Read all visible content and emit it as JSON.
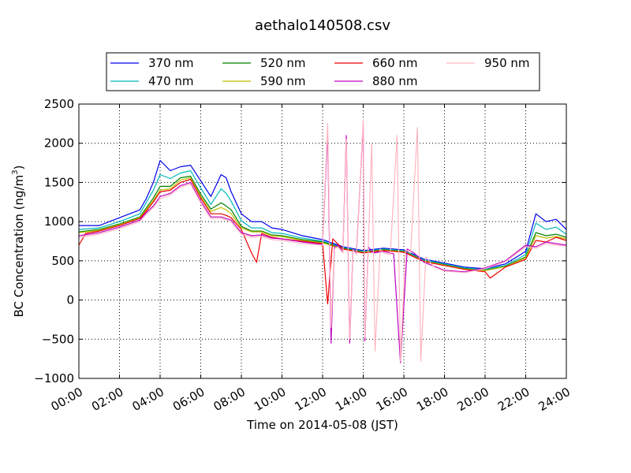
{
  "chart_data": {
    "type": "line",
    "title": "aethalo140508.csv",
    "xlabel": "Time on 2014-05-08 (JST)",
    "ylabel_main": "BC Concentration (ng/m",
    "ylabel_sup": "3",
    "ylabel_close": ")",
    "xlim": [
      "00:00",
      "24:00"
    ],
    "ylim": [
      -1000,
      2500
    ],
    "x_ticks": [
      "00:00",
      "02:00",
      "04:00",
      "06:00",
      "08:00",
      "10:00",
      "12:00",
      "14:00",
      "16:00",
      "18:00",
      "20:00",
      "22:00",
      "24:00"
    ],
    "y_ticks": [
      "−1000",
      "−500",
      "0",
      "500",
      "1000",
      "1500",
      "2000",
      "2500"
    ],
    "grid": true,
    "legend_position": "top, above plot",
    "series": [
      {
        "name": "370 nm",
        "color": "#0000ee",
        "x": [
          "00:00",
          "01:00",
          "02:00",
          "03:00",
          "03:20",
          "03:40",
          "04:00",
          "04:30",
          "05:00",
          "05:30",
          "06:00",
          "06:30",
          "07:00",
          "07:15",
          "07:30",
          "08:00",
          "08:30",
          "09:00",
          "09:30",
          "10:00",
          "11:00",
          "12:00",
          "13:00",
          "14:00",
          "15:00",
          "16:00",
          "17:00",
          "18:00",
          "19:00",
          "20:00",
          "21:00",
          "22:00",
          "22:30",
          "23:00",
          "23:30",
          "24:00"
        ],
        "y": [
          950,
          950,
          1050,
          1150,
          1300,
          1500,
          1780,
          1650,
          1700,
          1720,
          1520,
          1320,
          1600,
          1560,
          1380,
          1100,
          1000,
          1000,
          920,
          900,
          820,
          770,
          680,
          630,
          660,
          640,
          520,
          470,
          420,
          400,
          460,
          620,
          1100,
          1000,
          1030,
          900
        ]
      },
      {
        "name": "470 nm",
        "color": "#00b8b8",
        "x": [
          "00:00",
          "01:00",
          "02:00",
          "03:00",
          "03:20",
          "03:40",
          "04:00",
          "04:30",
          "05:00",
          "05:30",
          "06:00",
          "06:30",
          "07:00",
          "07:15",
          "07:30",
          "08:00",
          "08:30",
          "09:00",
          "09:30",
          "10:00",
          "11:00",
          "12:00",
          "13:00",
          "14:00",
          "15:00",
          "16:00",
          "17:00",
          "18:00",
          "19:00",
          "20:00",
          "21:00",
          "22:00",
          "22:30",
          "23:00",
          "23:30",
          "24:00"
        ],
        "y": [
          900,
          920,
          1000,
          1100,
          1250,
          1400,
          1600,
          1550,
          1620,
          1650,
          1430,
          1220,
          1420,
          1360,
          1260,
          1010,
          920,
          920,
          860,
          850,
          790,
          750,
          670,
          620,
          650,
          630,
          510,
          460,
          410,
          390,
          440,
          580,
          980,
          900,
          930,
          840
        ]
      },
      {
        "name": "520 nm",
        "color": "#007f00",
        "x": [
          "00:00",
          "01:00",
          "02:00",
          "03:00",
          "03:20",
          "03:40",
          "04:00",
          "04:30",
          "05:00",
          "05:30",
          "06:00",
          "06:30",
          "07:00",
          "07:15",
          "07:30",
          "08:00",
          "08:30",
          "09:00",
          "09:30",
          "10:00",
          "11:00",
          "12:00",
          "13:00",
          "14:00",
          "15:00",
          "16:00",
          "17:00",
          "18:00",
          "19:00",
          "20:00",
          "21:00",
          "22:00",
          "22:30",
          "23:00",
          "23:30",
          "24:00"
        ],
        "y": [
          870,
          900,
          970,
          1060,
          1180,
          1300,
          1450,
          1450,
          1560,
          1580,
          1350,
          1160,
          1240,
          1200,
          1150,
          940,
          880,
          880,
          830,
          820,
          770,
          740,
          660,
          610,
          640,
          620,
          500,
          450,
          400,
          380,
          430,
          550,
          860,
          820,
          840,
          800
        ]
      },
      {
        "name": "590 nm",
        "color": "#bfbf00",
        "x": [
          "00:00",
          "01:00",
          "02:00",
          "03:00",
          "03:20",
          "03:40",
          "04:00",
          "04:30",
          "05:00",
          "05:30",
          "06:00",
          "06:30",
          "07:00",
          "07:15",
          "07:30",
          "08:00",
          "08:30",
          "09:00",
          "09:30",
          "10:00",
          "11:00",
          "12:00",
          "13:00",
          "14:00",
          "15:00",
          "16:00",
          "17:00",
          "18:00",
          "19:00",
          "20:00",
          "21:00",
          "22:00",
          "22:30",
          "23:00",
          "23:30",
          "24:00"
        ],
        "y": [
          860,
          890,
          960,
          1050,
          1160,
          1270,
          1400,
          1420,
          1530,
          1560,
          1320,
          1130,
          1180,
          1150,
          1100,
          920,
          870,
          870,
          820,
          810,
          760,
          730,
          650,
          605,
          635,
          615,
          495,
          445,
          395,
          375,
          425,
          540,
          820,
          790,
          810,
          780
        ]
      },
      {
        "name": "660 nm",
        "color": "#ee0000",
        "x": [
          "00:00",
          "00:20",
          "01:00",
          "02:00",
          "03:00",
          "03:20",
          "03:40",
          "04:00",
          "04:30",
          "05:00",
          "05:30",
          "06:00",
          "06:30",
          "07:00",
          "07:15",
          "07:30",
          "08:00",
          "08:30",
          "08:45",
          "09:00",
          "09:30",
          "10:00",
          "11:00",
          "12:00",
          "12:15",
          "12:30",
          "13:00",
          "14:00",
          "15:00",
          "16:00",
          "17:00",
          "18:00",
          "19:00",
          "20:00",
          "20:15",
          "21:00",
          "22:00",
          "22:30",
          "23:00",
          "23:30",
          "24:00"
        ],
        "y": [
          700,
          850,
          880,
          950,
          1040,
          1140,
          1250,
          1380,
          1400,
          1500,
          1540,
          1300,
          1100,
          1100,
          1080,
          1050,
          900,
          600,
          480,
          850,
          800,
          780,
          750,
          720,
          -50,
          780,
          650,
          600,
          630,
          610,
          490,
          440,
          390,
          360,
          280,
          420,
          520,
          760,
          740,
          800,
          760
        ]
      },
      {
        "name": "880 nm",
        "color": "#bf00bf",
        "x": [
          "00:00",
          "01:00",
          "02:00",
          "03:00",
          "03:20",
          "03:40",
          "04:00",
          "04:30",
          "05:00",
          "05:30",
          "06:00",
          "06:30",
          "07:00",
          "07:30",
          "08:00",
          "08:30",
          "09:00",
          "09:30",
          "10:00",
          "11:00",
          "12:00",
          "12:15",
          "12:25",
          "12:35",
          "12:45",
          "13:00",
          "13:10",
          "13:20",
          "13:30",
          "13:40",
          "14:00",
          "14:05",
          "14:15",
          "14:30",
          "15:00",
          "15:30",
          "15:50",
          "16:10",
          "16:30",
          "17:00",
          "17:30",
          "18:00",
          "19:00",
          "20:00",
          "21:00",
          "22:00",
          "22:30",
          "23:00",
          "23:30",
          "24:00"
        ],
        "y": [
          820,
          860,
          930,
          1020,
          1120,
          1200,
          1320,
          1360,
          1460,
          1500,
          1260,
          1060,
          1060,
          1020,
          860,
          820,
          830,
          790,
          780,
          740,
          710,
          2150,
          -550,
          680,
          700,
          620,
          2100,
          -550,
          650,
          600,
          2250,
          -520,
          680,
          600,
          620,
          590,
          -800,
          650,
          600,
          480,
          430,
          380,
          360,
          410,
          500,
          700,
          680,
          740,
          720,
          700
        ]
      },
      {
        "name": "950 nm",
        "color": "#ffb6c1",
        "x": [
          "00:00",
          "01:00",
          "02:00",
          "03:00",
          "03:20",
          "03:40",
          "04:00",
          "04:30",
          "05:00",
          "05:30",
          "06:00",
          "06:30",
          "07:00",
          "07:30",
          "08:00",
          "08:30",
          "09:00",
          "09:30",
          "10:00",
          "11:00",
          "12:00",
          "12:15",
          "12:25",
          "12:35",
          "12:45",
          "13:00",
          "13:10",
          "13:20",
          "13:30",
          "13:40",
          "14:00",
          "14:05",
          "14:15",
          "14:25",
          "14:35",
          "14:50",
          "15:00",
          "15:20",
          "15:40",
          "15:50",
          "16:05",
          "16:20",
          "16:40",
          "16:50",
          "17:05",
          "17:20",
          "17:30",
          "18:00",
          "19:00",
          "20:00",
          "21:00",
          "22:00",
          "22:30",
          "23:00",
          "23:30",
          "24:00"
        ],
        "y": [
          800,
          840,
          910,
          1000,
          1100,
          1180,
          1290,
          1340,
          1440,
          1480,
          1240,
          1040,
          1040,
          1000,
          840,
          800,
          810,
          770,
          760,
          720,
          700,
          2250,
          -350,
          650,
          680,
          600,
          2050,
          -500,
          640,
          580,
          2300,
          -480,
          660,
          2000,
          -650,
          650,
          600,
          580,
          2100,
          -780,
          640,
          600,
          2200,
          -780,
          550,
          470,
          420,
          370,
          350,
          400,
          490,
          680,
          660,
          720,
          700,
          690
        ]
      }
    ]
  }
}
